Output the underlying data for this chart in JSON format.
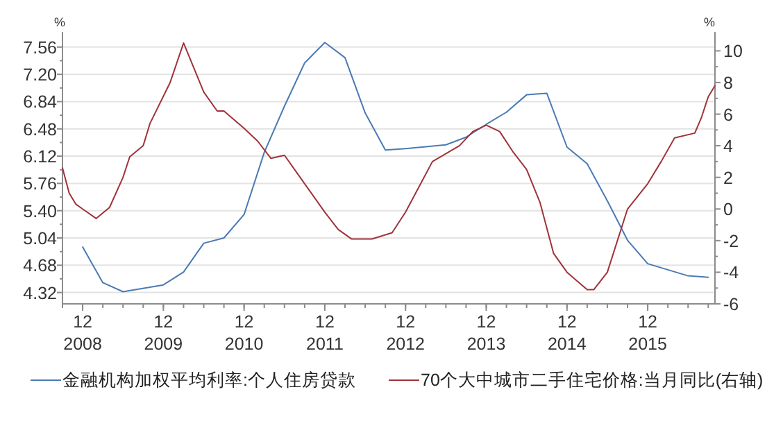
{
  "chart_data": {
    "type": "line",
    "ylabel": "%",
    "y2label": "%",
    "xlim": [
      "2008-09",
      "2016-10"
    ],
    "xticks": [
      {
        "value": "2008-12",
        "label": "12\n2008"
      },
      {
        "value": "2009-12",
        "label": "12\n2009"
      },
      {
        "value": "2010-12",
        "label": "12\n2010"
      },
      {
        "value": "2011-12",
        "label": "12\n2011"
      },
      {
        "value": "2012-12",
        "label": "12\n2012"
      },
      {
        "value": "2013-12",
        "label": "12\n2013"
      },
      {
        "value": "2014-12",
        "label": "12\n2014"
      },
      {
        "value": "2015-12",
        "label": "12\n2015"
      }
    ],
    "ylim": [
      4.17,
      7.76
    ],
    "yticks": [
      {
        "value": 4.32,
        "label": "4.32"
      },
      {
        "value": 4.68,
        "label": "4.68"
      },
      {
        "value": 5.04,
        "label": "5.04"
      },
      {
        "value": 5.4,
        "label": "5.40"
      },
      {
        "value": 5.76,
        "label": "5.76"
      },
      {
        "value": 6.12,
        "label": "6.12"
      },
      {
        "value": 6.48,
        "label": "6.48"
      },
      {
        "value": 6.84,
        "label": "6.84"
      },
      {
        "value": 7.2,
        "label": "7.20"
      },
      {
        "value": 7.56,
        "label": "7.56"
      }
    ],
    "y2lim": [
      -6,
      11.2
    ],
    "y2ticks": [
      -6,
      -4,
      -2,
      0,
      2,
      4,
      6,
      8,
      10
    ],
    "grid": "y",
    "legend": "bottom",
    "series": [
      {
        "name": "金融机构加权平均利率:个人住房贷款",
        "color": "#4a7ab5",
        "x": [
          "2008-12",
          "2009-03",
          "2009-06",
          "2009-12",
          "2010-03",
          "2010-06",
          "2010-09",
          "2010-12",
          "2011-03",
          "2011-06",
          "2011-09",
          "2011-12",
          "2012-03",
          "2012-06",
          "2012-09",
          "2012-12",
          "2013-06",
          "2013-09",
          "2013-12",
          "2014-03",
          "2014-06",
          "2014-09",
          "2014-12",
          "2015-03",
          "2015-06",
          "2015-09",
          "2015-12",
          "2016-03",
          "2016-06",
          "2016-09"
        ],
        "values": [
          4.92,
          4.45,
          4.33,
          4.42,
          4.59,
          4.97,
          5.04,
          5.35,
          6.17,
          6.78,
          7.35,
          7.62,
          7.42,
          6.69,
          6.2,
          6.22,
          6.27,
          6.37,
          6.54,
          6.7,
          6.93,
          6.95,
          6.24,
          6.02,
          5.53,
          5.01,
          4.7,
          4.62,
          4.54,
          4.52
        ]
      },
      {
        "name": "70个大中城市二手住宅价格:当月同比(右轴)",
        "color": "#a0323a",
        "axis": "y2",
        "x": [
          "2008-09",
          "2008-10",
          "2008-11",
          "2008-12",
          "2009-02",
          "2009-04",
          "2009-06",
          "2009-07",
          "2009-09",
          "2009-10",
          "2010-01",
          "2010-03",
          "2010-06",
          "2010-08",
          "2010-09",
          "2010-12",
          "2011-02",
          "2011-04",
          "2011-06",
          "2011-08",
          "2011-12",
          "2012-02",
          "2012-04",
          "2012-07",
          "2012-10",
          "2012-12",
          "2013-04",
          "2013-08",
          "2013-10",
          "2013-12",
          "2014-02",
          "2014-04",
          "2014-06",
          "2014-08",
          "2014-10",
          "2014-12",
          "2015-03",
          "2015-04",
          "2015-06",
          "2015-09",
          "2015-12",
          "2016-02",
          "2016-04",
          "2016-07",
          "2016-08",
          "2016-09",
          "2016-10"
        ],
        "values": [
          2.6,
          1.0,
          0.3,
          0.0,
          -0.6,
          0.1,
          2.0,
          3.3,
          4.0,
          5.4,
          8.0,
          10.5,
          7.4,
          6.2,
          6.2,
          5.1,
          4.3,
          3.2,
          3.4,
          2.2,
          -0.2,
          -1.3,
          -1.9,
          -1.9,
          -1.5,
          -0.2,
          3.0,
          4.0,
          4.9,
          5.3,
          4.9,
          3.6,
          2.5,
          0.4,
          -2.8,
          -4.0,
          -5.1,
          -5.1,
          -4.0,
          0.0,
          1.6,
          3.0,
          4.5,
          4.8,
          5.8,
          7.1,
          7.8
        ]
      }
    ]
  }
}
